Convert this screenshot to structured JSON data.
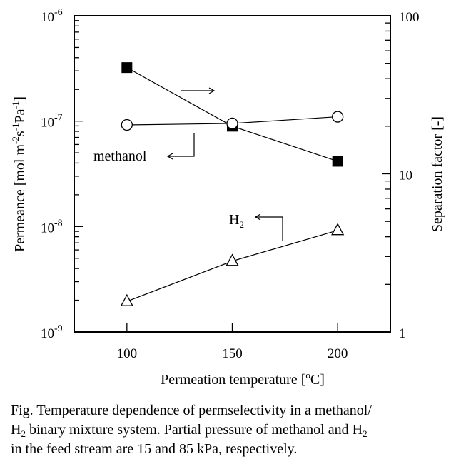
{
  "chart_data": {
    "type": "line",
    "title": "",
    "xlabel": "Permeation temperature [°C]",
    "xlabel_parts": {
      "main": "Permeation temperature [",
      "sup": "o",
      "after": "C]"
    },
    "ylabel_left": "Permeance [mol m-2s-1Pa-1]",
    "ylabel_left_parts": [
      "Permeance [mol m",
      "-2",
      "s",
      "-1",
      "Pa",
      "-1",
      "]"
    ],
    "ylabel_right": "Separation factor [-]",
    "xlim": [
      75,
      225
    ],
    "ylim_left": [
      1e-09,
      1e-06
    ],
    "ylim_right": [
      1,
      100
    ],
    "yscale": "log",
    "grid": false,
    "x": [
      100,
      150,
      200
    ],
    "x_tick_labels": [
      "100",
      "150",
      "200"
    ],
    "y_left_tick_labels": [
      {
        "base": "10",
        "exp": "-6"
      },
      {
        "base": "10",
        "exp": "-7"
      },
      {
        "base": "10",
        "exp": "-8"
      },
      {
        "base": "10",
        "exp": "-9"
      }
    ],
    "y_right_tick_labels": [
      "100",
      "10",
      "1"
    ],
    "series": [
      {
        "name": "methanol",
        "axis": "left",
        "marker": "open-circle",
        "values": [
          9.2e-08,
          9.5e-08,
          1.1e-07
        ]
      },
      {
        "name": "H2",
        "axis": "left",
        "marker": "open-triangle",
        "values": [
          1.95e-09,
          4.7e-09,
          9.2e-09
        ]
      },
      {
        "name": "separation factor",
        "axis": "right",
        "marker": "filled-square",
        "values": [
          47,
          20,
          12
        ]
      }
    ],
    "annotations": {
      "methanol_label": "methanol",
      "h2_label": {
        "base": "H",
        "sub": "2"
      },
      "separation_arrow": "right-arrow"
    }
  },
  "caption": {
    "line1": "Fig. Temperature dependence of permselectivity in a methanol/",
    "line2_a": "H",
    "line2_sub": "2",
    "line2_b": " binary mixture system. Partial pressure of methanol and H",
    "line2_sub2": "2",
    "line3": "in the feed stream are 15 and 85 kPa, respectively."
  },
  "colors": {
    "ink": "#000000",
    "background": "#ffffff"
  }
}
